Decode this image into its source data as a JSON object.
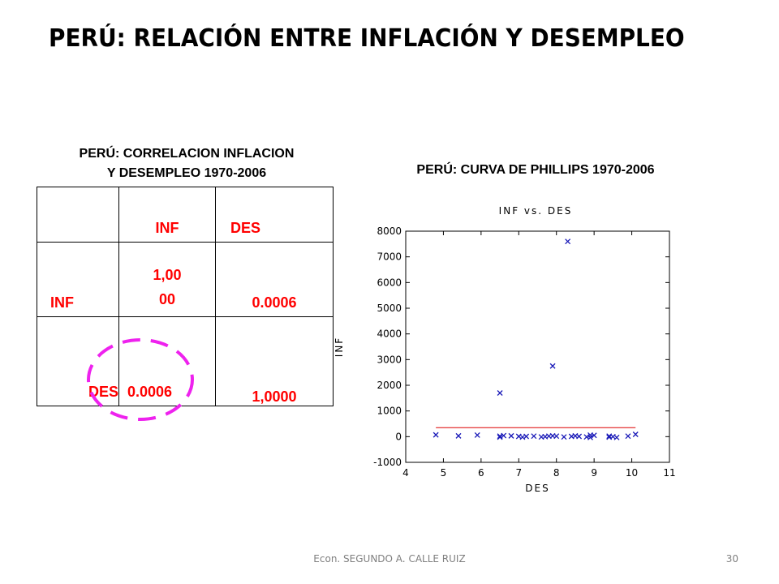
{
  "title": "PERÚ: RELACIÓN ENTRE INFLACIÓN Y DESEMPLEO",
  "table_caption": {
    "line1": "PERÚ: CORRELACION INFLACION",
    "line2": "Y DESEMPLEO 1970-2006"
  },
  "chart_caption": "PERÚ: CURVA DE PHILLIPS 1970-2006",
  "table": {
    "header": [
      "",
      "INF",
      "DES"
    ],
    "rows": [
      {
        "label": "INF",
        "inf_value": "1,00\n00",
        "des_value": "0.0006"
      },
      {
        "label": "DES",
        "inf_value": "0.0006",
        "des_value": "1,0000"
      }
    ]
  },
  "footer": {
    "author": "Econ. SEGUNDO A. CALLE RUIZ",
    "page": "30"
  },
  "colors": {
    "table_text": "#ff0000",
    "highlight_circle": "#ee22ee",
    "marker": "#1a1ab8",
    "fit_line": "#dd0000"
  },
  "chart_data": {
    "type": "scatter",
    "title": "INF vs. DES",
    "xlabel": "DES",
    "ylabel": "INF",
    "xlim": [
      4,
      11
    ],
    "ylim": [
      -1000,
      8000
    ],
    "xticks": [
      4,
      5,
      6,
      7,
      8,
      9,
      10,
      11
    ],
    "yticks": [
      -1000,
      0,
      1000,
      2000,
      3000,
      4000,
      5000,
      6000,
      7000,
      8000
    ],
    "grid": false,
    "marker": "x",
    "points": [
      [
        4.8,
        70
      ],
      [
        5.4,
        30
      ],
      [
        5.9,
        60
      ],
      [
        6.5,
        1700
      ],
      [
        6.5,
        20
      ],
      [
        6.5,
        -20
      ],
      [
        6.6,
        40
      ],
      [
        6.8,
        30
      ],
      [
        7.0,
        10
      ],
      [
        7.1,
        -20
      ],
      [
        7.2,
        10
      ],
      [
        7.4,
        20
      ],
      [
        7.6,
        -10
      ],
      [
        7.7,
        0
      ],
      [
        7.8,
        20
      ],
      [
        7.9,
        2750
      ],
      [
        7.9,
        30
      ],
      [
        8.0,
        20
      ],
      [
        8.2,
        -10
      ],
      [
        8.3,
        7600
      ],
      [
        8.4,
        10
      ],
      [
        8.5,
        30
      ],
      [
        8.6,
        10
      ],
      [
        8.8,
        -10
      ],
      [
        8.9,
        60
      ],
      [
        8.9,
        -30
      ],
      [
        9.0,
        50
      ],
      [
        9.4,
        20
      ],
      [
        9.4,
        -20
      ],
      [
        9.5,
        0
      ],
      [
        9.6,
        -30
      ],
      [
        9.9,
        20
      ],
      [
        10.1,
        90
      ]
    ],
    "fit_line": {
      "x": [
        4.8,
        10.1
      ],
      "y": [
        350,
        350
      ]
    }
  }
}
